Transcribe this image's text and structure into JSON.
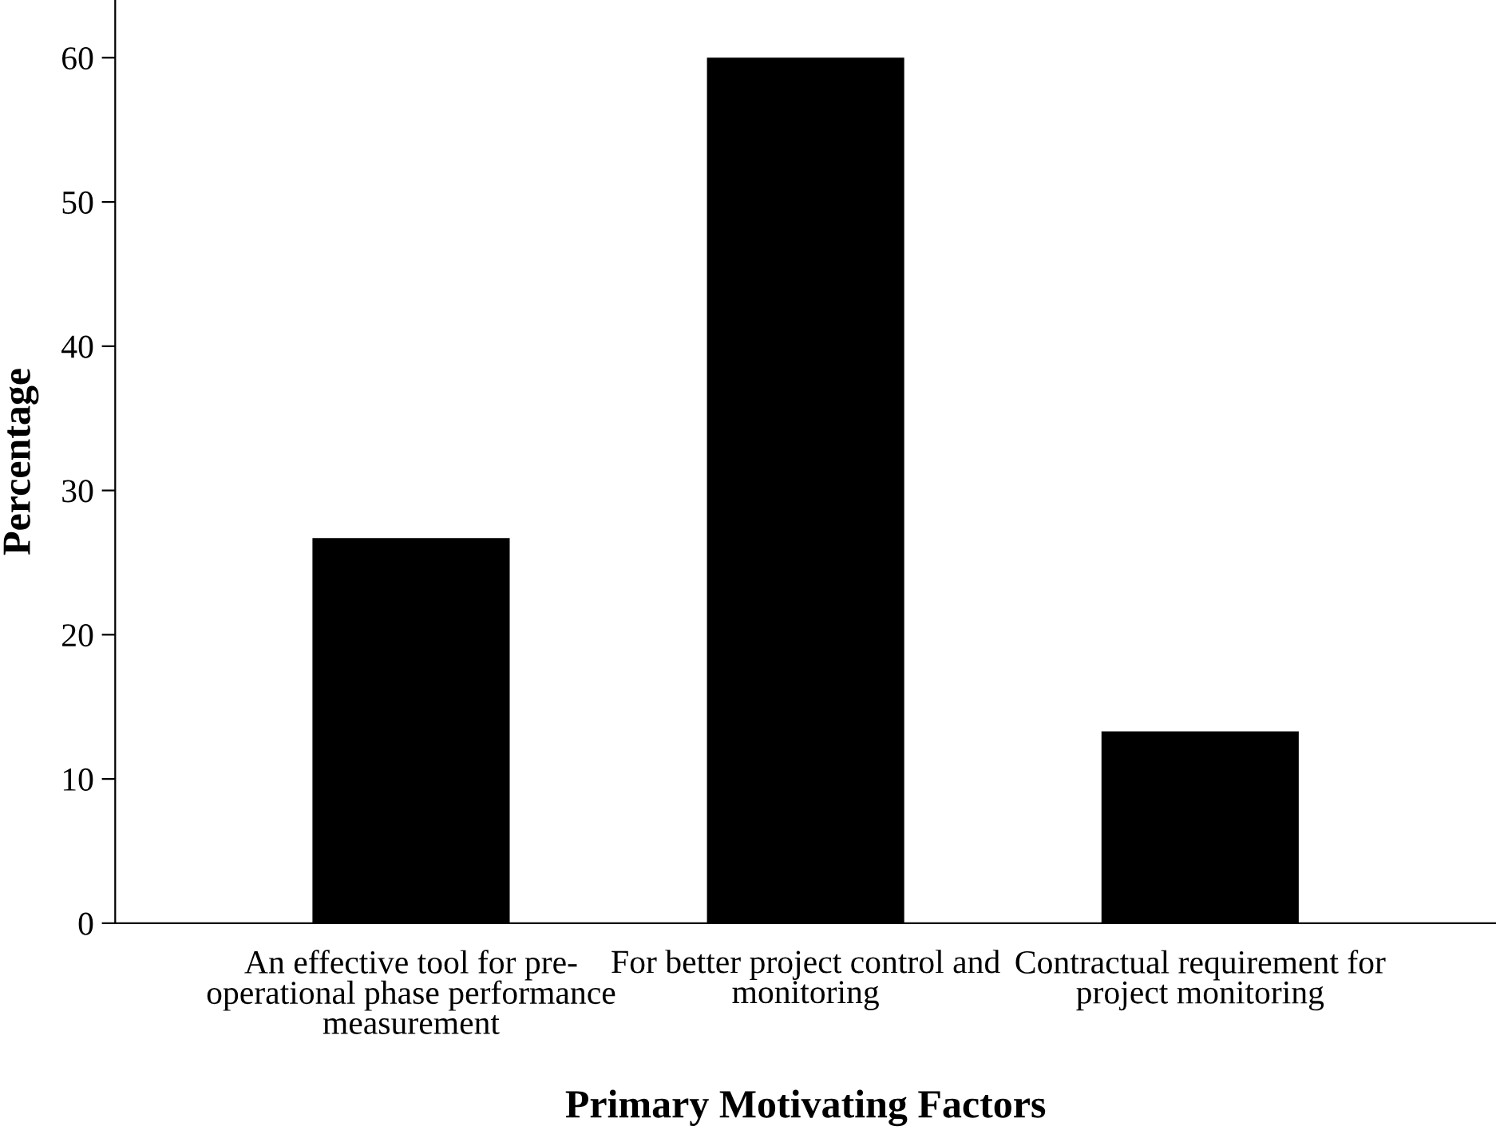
{
  "chart_data": {
    "type": "bar",
    "xlabel": "Primary Motivating Factors",
    "ylabel": "Percentage",
    "categories": [
      "An effective tool for pre-\noperational phase performance\nmeasurement",
      "For better project control and\nmonitoring",
      "Contractual requirement for\nproject monitoring"
    ],
    "values": [
      26.7,
      60.0,
      13.3
    ],
    "color": "#000000",
    "ylim": [
      0,
      64
    ],
    "yticks": [
      0,
      10,
      20,
      30,
      40,
      50,
      60
    ],
    "grid": false,
    "legend": false
  }
}
